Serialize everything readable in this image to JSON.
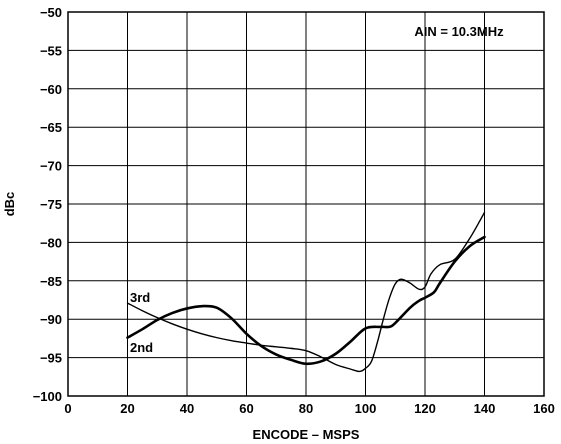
{
  "chart_data": {
    "type": "line",
    "title": "",
    "xlabel": "ENCODE – MSPS",
    "ylabel": "dBc",
    "xlim": [
      0,
      160
    ],
    "ylim": [
      -100,
      -50
    ],
    "x_ticks": [
      0,
      20,
      40,
      60,
      80,
      100,
      120,
      140,
      160
    ],
    "y_ticks": [
      -50,
      -55,
      -60,
      -65,
      -70,
      -75,
      -80,
      -85,
      -90,
      -95,
      -100
    ],
    "x_tick_labels": [
      "0",
      "20",
      "40",
      "60",
      "80",
      "100",
      "120",
      "140",
      "160"
    ],
    "y_tick_labels": [
      "−50",
      "−55",
      "−60",
      "−65",
      "−70",
      "−75",
      "−80",
      "−85",
      "−90",
      "−95",
      "−100"
    ],
    "grid": true,
    "annotation": "AIN = 10.3MHz",
    "series": [
      {
        "name": "2nd",
        "line_weight": "thick",
        "points": [
          [
            20,
            -92.4
          ],
          [
            25,
            -91.3
          ],
          [
            30,
            -90.1
          ],
          [
            35,
            -89.2
          ],
          [
            40,
            -88.6
          ],
          [
            45,
            -88.3
          ],
          [
            50,
            -88.5
          ],
          [
            55,
            -89.9
          ],
          [
            60,
            -91.9
          ],
          [
            65,
            -93.5
          ],
          [
            70,
            -94.6
          ],
          [
            75,
            -95.3
          ],
          [
            80,
            -95.8
          ],
          [
            85,
            -95.5
          ],
          [
            90,
            -94.5
          ],
          [
            95,
            -92.9
          ],
          [
            100,
            -91.2
          ],
          [
            105,
            -91.0
          ],
          [
            108,
            -91.0
          ],
          [
            110,
            -90.5
          ],
          [
            115,
            -88.5
          ],
          [
            118,
            -87.6
          ],
          [
            120,
            -87.2
          ],
          [
            123,
            -86.5
          ],
          [
            125,
            -85.3
          ],
          [
            130,
            -82.5
          ],
          [
            135,
            -80.5
          ],
          [
            140,
            -79.3
          ]
        ]
      },
      {
        "name": "3rd",
        "line_weight": "thin",
        "points": [
          [
            20,
            -87.9
          ],
          [
            25,
            -88.9
          ],
          [
            30,
            -89.8
          ],
          [
            35,
            -90.6
          ],
          [
            40,
            -91.3
          ],
          [
            45,
            -91.9
          ],
          [
            50,
            -92.4
          ],
          [
            55,
            -92.8
          ],
          [
            60,
            -93.1
          ],
          [
            65,
            -93.4
          ],
          [
            70,
            -93.6
          ],
          [
            75,
            -93.8
          ],
          [
            80,
            -94.1
          ],
          [
            85,
            -94.9
          ],
          [
            90,
            -95.9
          ],
          [
            95,
            -96.5
          ],
          [
            98,
            -96.8
          ],
          [
            100,
            -96.4
          ],
          [
            102,
            -95.5
          ],
          [
            104,
            -93.0
          ],
          [
            106,
            -90.0
          ],
          [
            108,
            -87.3
          ],
          [
            110,
            -85.4
          ],
          [
            112,
            -84.8
          ],
          [
            115,
            -85.3
          ],
          [
            118,
            -86.1
          ],
          [
            120,
            -85.8
          ],
          [
            122,
            -84.1
          ],
          [
            125,
            -82.9
          ],
          [
            130,
            -82.2
          ],
          [
            135,
            -79.5
          ],
          [
            140,
            -76.1
          ]
        ]
      }
    ],
    "series_labels": [
      "2nd",
      "3rd"
    ]
  }
}
